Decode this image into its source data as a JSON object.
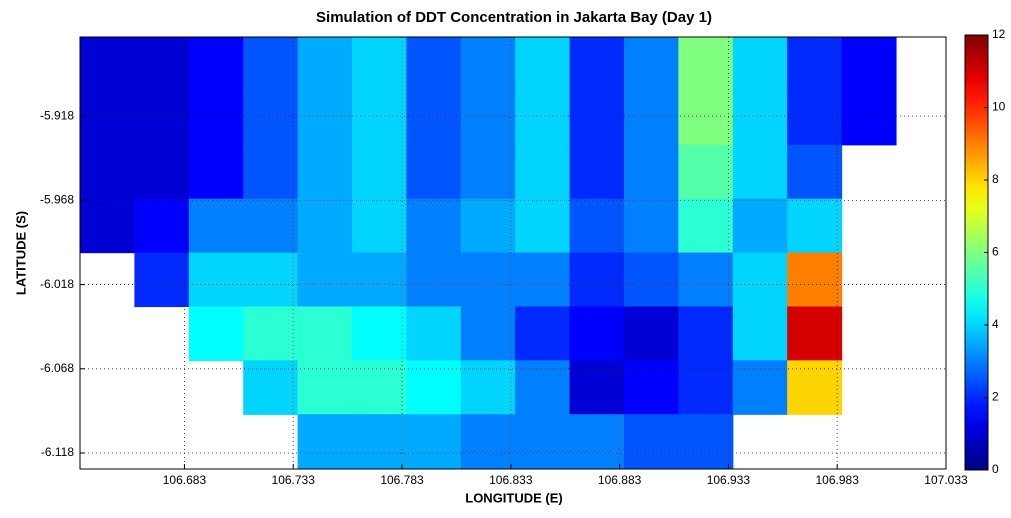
{
  "chart_data": {
    "type": "heatmap",
    "title": "Simulation of DDT Concentration in Jakarta Bay (Day 1)",
    "x_label": "LONGITUDE (E)",
    "y_label": "LATITUDE (S)",
    "colormap": "jet",
    "grid": true,
    "x": [
      106.6475,
      106.6725,
      106.6975,
      106.7225,
      106.7475,
      106.7725,
      106.7975,
      106.8225,
      106.8475,
      106.8725,
      106.8975,
      106.9225,
      106.9475,
      106.9725,
      106.9975,
      107.0225
    ],
    "y": [
      -5.887,
      -5.919,
      -5.951,
      -5.983,
      -6.015,
      -6.047,
      -6.079,
      -6.111
    ],
    "z": [
      [
        1,
        1,
        1.5,
        2.5,
        3.5,
        4,
        2.5,
        3,
        4,
        2,
        3,
        6,
        4,
        2,
        1.5,
        null
      ],
      [
        1,
        1,
        1.5,
        2.5,
        3.5,
        4,
        2.5,
        3,
        4,
        2,
        3,
        6,
        4,
        2,
        1.5,
        null
      ],
      [
        1,
        1,
        1.5,
        2.5,
        3.5,
        4,
        2.5,
        3,
        4,
        2,
        3,
        5.5,
        4,
        2.5,
        null,
        null
      ],
      [
        1,
        1.5,
        3,
        3,
        3.5,
        4,
        3,
        3.5,
        4,
        2.5,
        3,
        5,
        3.5,
        4,
        null,
        null
      ],
      [
        null,
        2,
        4,
        4,
        3.5,
        3.5,
        3,
        3,
        3,
        2,
        2.5,
        3,
        4,
        9,
        null,
        null
      ],
      [
        null,
        null,
        4.5,
        5,
        5,
        4.5,
        4,
        3,
        2,
        1.5,
        1,
        2,
        4,
        11,
        null,
        null
      ],
      [
        null,
        null,
        null,
        4,
        5,
        5,
        4.5,
        4,
        3,
        1,
        1.5,
        2,
        3,
        8,
        null,
        null
      ],
      [
        null,
        null,
        null,
        null,
        3.5,
        3.5,
        3.5,
        3,
        3,
        3,
        2.5,
        2.5,
        null,
        null,
        null,
        null
      ]
    ],
    "xlim": [
      106.635,
      107.033
    ],
    "ylim": [
      -6.1275,
      -5.871
    ],
    "xticks": [
      106.683,
      106.733,
      106.783,
      106.833,
      106.883,
      106.933,
      106.983,
      107.033
    ],
    "yticks": [
      -6.118,
      -6.068,
      -6.018,
      -5.968,
      -5.918
    ],
    "zlim": [
      0,
      12
    ],
    "zticks": [
      0,
      2,
      4,
      6,
      8,
      10,
      12
    ]
  }
}
